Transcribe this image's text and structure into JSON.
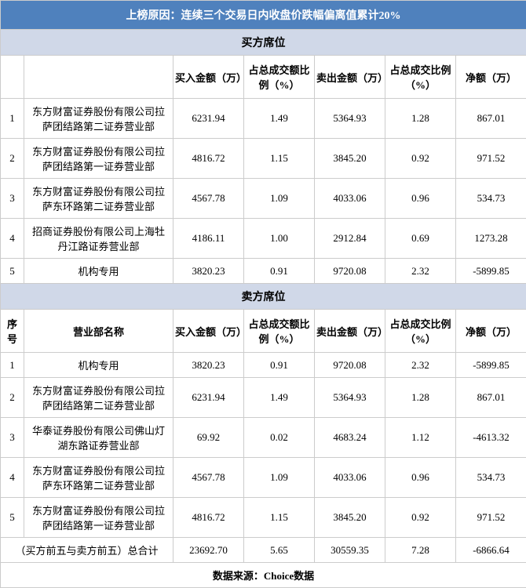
{
  "title": "上榜原因：连续三个交易日内收盘价跌幅偏离值累计20%",
  "colors": {
    "title_bg": "#4f81bd",
    "title_fg": "#ffffff",
    "section_bg": "#d0d8e8",
    "border": "#cccccc",
    "bg": "#ffffff",
    "fg": "#000000"
  },
  "buyer_section": "买方席位",
  "seller_section": "卖方席位",
  "columns": {
    "idx": "序号",
    "name": "营业部名称",
    "buy_amt": "买入金额（万）",
    "buy_pct": "占总成交额比例（%）",
    "sell_amt": "卖出金额（万）",
    "sell_pct": "占总成交比例（%）",
    "net": "净额（万）"
  },
  "buyers": [
    {
      "idx": "1",
      "name": "东方财富证券股份有限公司拉萨团结路第二证券营业部",
      "buy_amt": "6231.94",
      "buy_pct": "1.49",
      "sell_amt": "5364.93",
      "sell_pct": "1.28",
      "net": "867.01"
    },
    {
      "idx": "2",
      "name": "东方财富证券股份有限公司拉萨团结路第一证券营业部",
      "buy_amt": "4816.72",
      "buy_pct": "1.15",
      "sell_amt": "3845.20",
      "sell_pct": "0.92",
      "net": "971.52"
    },
    {
      "idx": "3",
      "name": "东方财富证券股份有限公司拉萨东环路第二证券营业部",
      "buy_amt": "4567.78",
      "buy_pct": "1.09",
      "sell_amt": "4033.06",
      "sell_pct": "0.96",
      "net": "534.73"
    },
    {
      "idx": "4",
      "name": "招商证券股份有限公司上海牡丹江路证券营业部",
      "buy_amt": "4186.11",
      "buy_pct": "1.00",
      "sell_amt": "2912.84",
      "sell_pct": "0.69",
      "net": "1273.28"
    },
    {
      "idx": "5",
      "name": "机构专用",
      "buy_amt": "3820.23",
      "buy_pct": "0.91",
      "sell_amt": "9720.08",
      "sell_pct": "2.32",
      "net": "-5899.85"
    }
  ],
  "sellers": [
    {
      "idx": "1",
      "name": "机构专用",
      "buy_amt": "3820.23",
      "buy_pct": "0.91",
      "sell_amt": "9720.08",
      "sell_pct": "2.32",
      "net": "-5899.85"
    },
    {
      "idx": "2",
      "name": "东方财富证券股份有限公司拉萨团结路第二证券营业部",
      "buy_amt": "6231.94",
      "buy_pct": "1.49",
      "sell_amt": "5364.93",
      "sell_pct": "1.28",
      "net": "867.01"
    },
    {
      "idx": "3",
      "name": "华泰证券股份有限公司佛山灯湖东路证券营业部",
      "buy_amt": "69.92",
      "buy_pct": "0.02",
      "sell_amt": "4683.24",
      "sell_pct": "1.12",
      "net": "-4613.32"
    },
    {
      "idx": "4",
      "name": "东方财富证券股份有限公司拉萨东环路第二证券营业部",
      "buy_amt": "4567.78",
      "buy_pct": "1.09",
      "sell_amt": "4033.06",
      "sell_pct": "0.96",
      "net": "534.73"
    },
    {
      "idx": "5",
      "name": "东方财富证券股份有限公司拉萨团结路第一证券营业部",
      "buy_amt": "4816.72",
      "buy_pct": "1.15",
      "sell_amt": "3845.20",
      "sell_pct": "0.92",
      "net": "971.52"
    }
  ],
  "total": {
    "label": "（买方前五与卖方前五）总合计",
    "buy_amt": "23692.70",
    "buy_pct": "5.65",
    "sell_amt": "30559.35",
    "sell_pct": "7.28",
    "net": "-6866.64"
  },
  "footer": "数据来源：Choice数据"
}
